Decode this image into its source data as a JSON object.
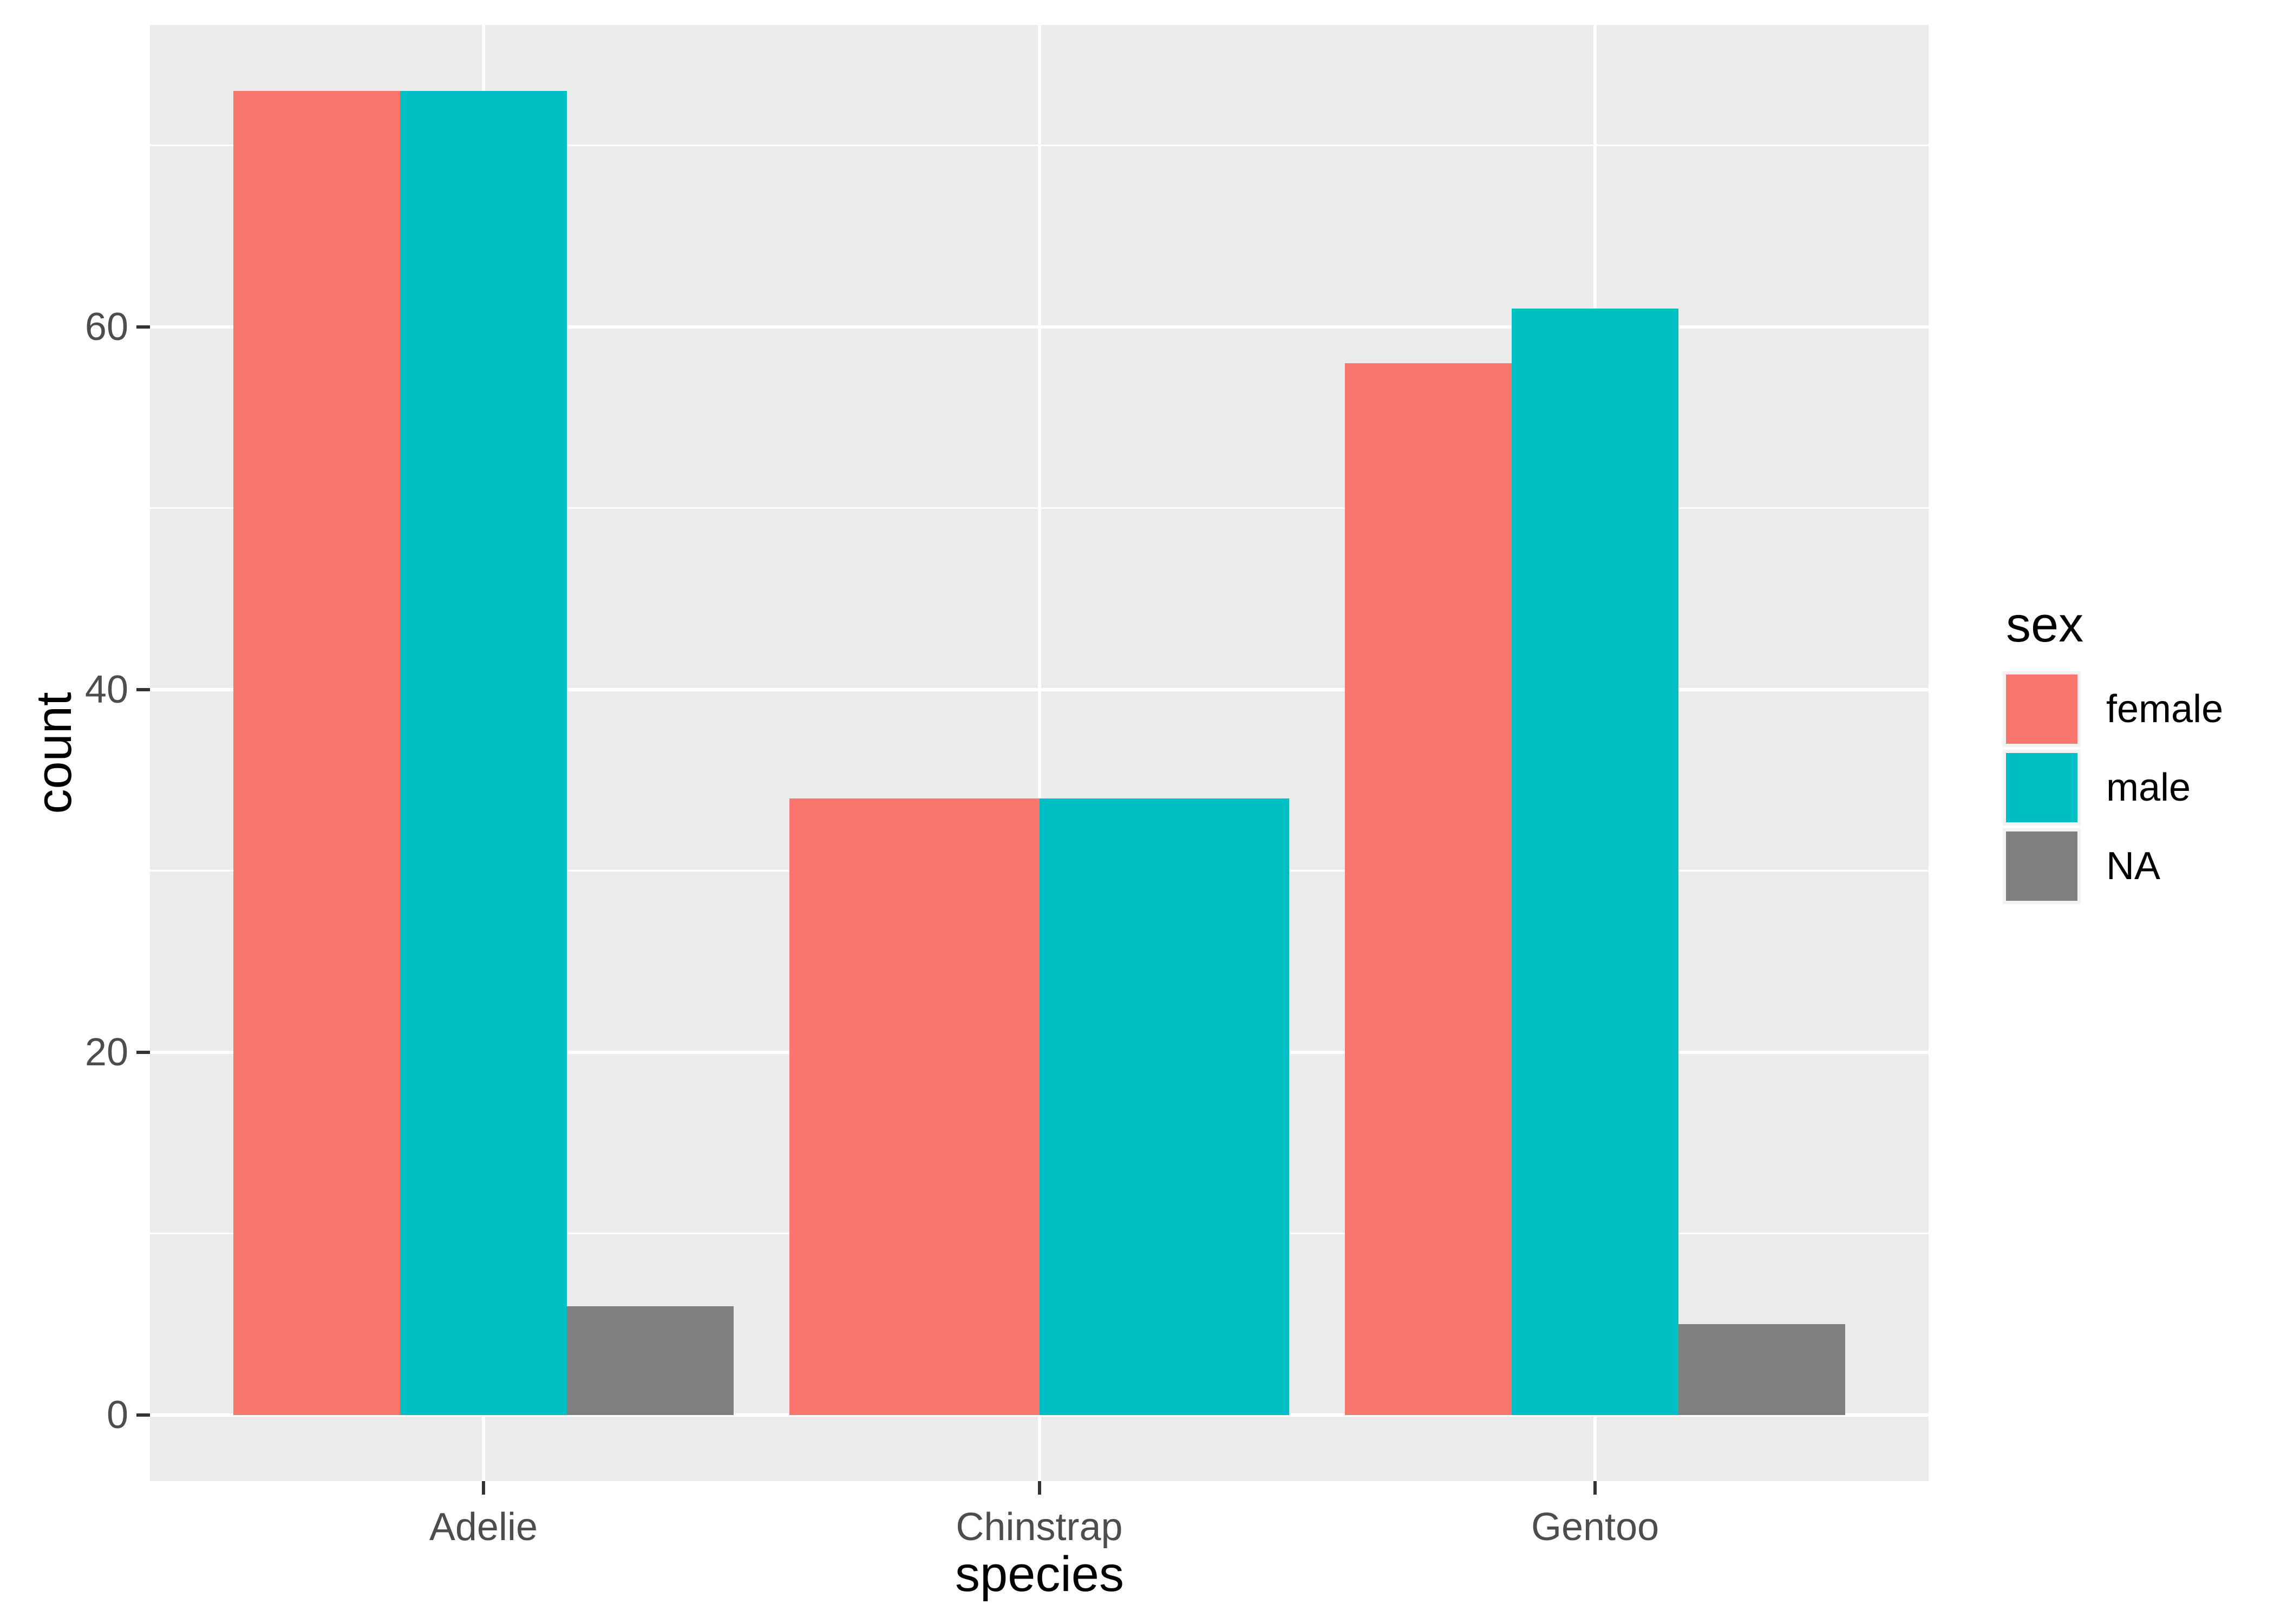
{
  "chart_data": {
    "type": "bar",
    "title": "",
    "xlabel": "species",
    "ylabel": "count",
    "categories": [
      "Adelie",
      "Chinstrap",
      "Gentoo"
    ],
    "series": [
      {
        "name": "female",
        "color": "#F8766D",
        "values": [
          73,
          34,
          58
        ]
      },
      {
        "name": "male",
        "color": "#00BFC4",
        "values": [
          73,
          34,
          61
        ]
      },
      {
        "name": "NA",
        "color": "#7F7F7F",
        "values": [
          6,
          null,
          5
        ]
      }
    ],
    "legend": {
      "title": "sex",
      "position": "right"
    },
    "y_axis": {
      "major_ticks": [
        0,
        20,
        40,
        60
      ],
      "minor_ticks": [
        10,
        30,
        50,
        70
      ],
      "range": [
        -3.65,
        76.65
      ]
    },
    "x_axis": {
      "tick_labels": [
        "Adelie",
        "Chinstrap",
        "Gentoo"
      ]
    },
    "grid": true,
    "bar_group_width": 0.9,
    "layout_hints": {
      "legend_position": "right",
      "grid_major": "on",
      "grid_minor": "on"
    }
  },
  "style": {
    "panel_bg": "#EBEBEB",
    "grid_color": "#FFFFFF",
    "axis_text_color": "#4D4D4D",
    "tick_mark_color": "#333333",
    "title_color": "#000000",
    "legend_key_bg": "#F2F2F2",
    "plot_bg": "#FFFFFF"
  }
}
